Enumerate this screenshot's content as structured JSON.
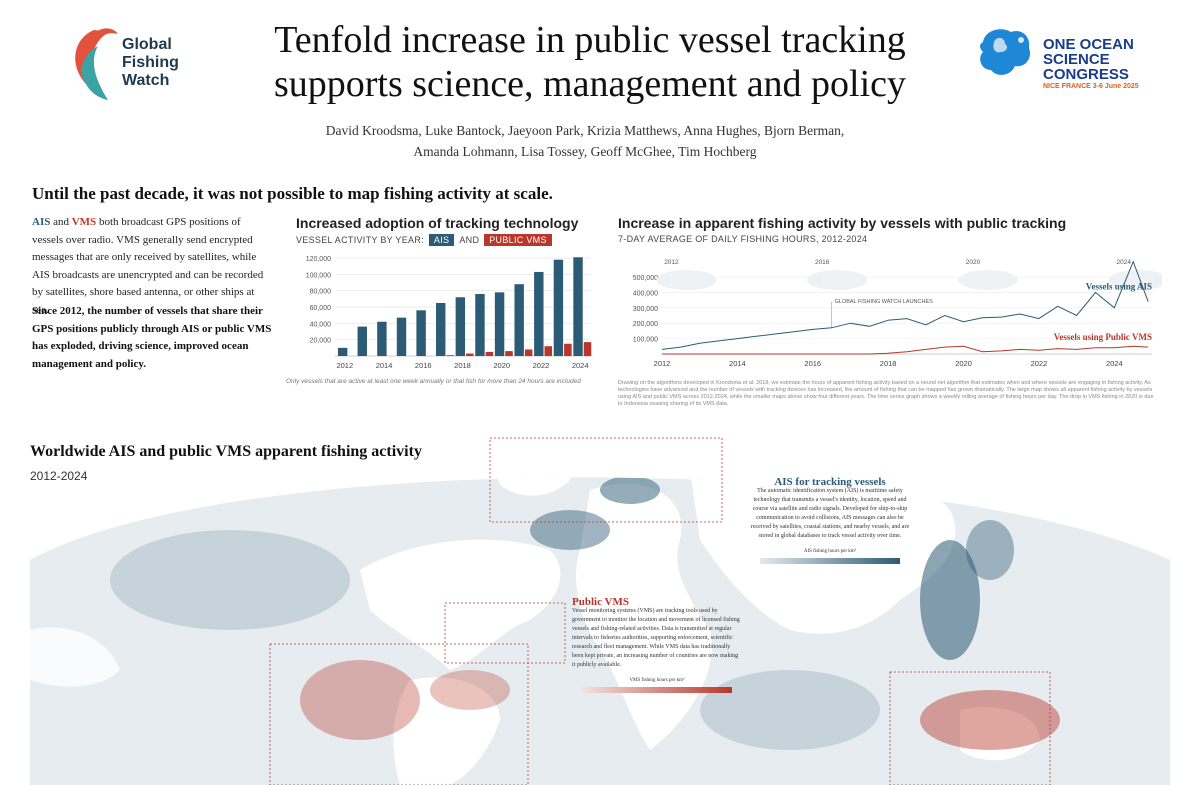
{
  "header": {
    "org_logo": [
      "Global",
      "Fishing",
      "Watch"
    ],
    "title_line1": "Tenfold increase in public vessel tracking",
    "title_line2": "supports science, management and policy",
    "authors_line1": "David Kroodsma, Luke Bantock, Jaeyoon Park, Krizia Matthews, Anna Hughes, Bjorn Berman,",
    "authors_line2": "Amanda Lohmann, Lisa Tossey, Geoff McGhee, Tim Hochberg",
    "conference_logo": [
      "ONE OCEAN",
      "SCIENCE",
      "CONGRESS"
    ],
    "conference_sub": "NICE FRANCE 3-6 June 2025"
  },
  "tagline": "Until the past decade, it was not possible to map fishing activity at scale.",
  "intro": {
    "ais": "AIS",
    "and": " and ",
    "vms": "VMS",
    "rest": " both broadcast GPS positions of vessels over radio. VMS generally send encrypted messages that are only received by satellites, while AIS broadcasts are unencrypted and can be recorded by satellites, shore based antenna, or other ships at sea.",
    "bold": "Since 2012, the number of vessels that share their GPS positions publicly through AIS or public VMS has exploded, driving science, improved ocean management and policy."
  },
  "colors": {
    "ais": "#2c5b75",
    "vms": "#b8372a"
  },
  "bar_chart_text": {
    "title": "Increased adoption of tracking technology",
    "sub_prefix": "VESSEL ACTIVITY BY YEAR:",
    "tag_ais": "AIS",
    "sub_and": "AND",
    "tag_vms": "PUBLIC VMS",
    "note": "Only vessels that are active at least one week annually or that fish for more than 24 hours are included"
  },
  "line_chart_text": {
    "title": "Increase in apparent fishing activity by vessels with public tracking",
    "sub": "7-DAY AVERAGE OF DAILY FISHING HOURS, 2012-2024",
    "note": "Drawing on the algorithms developed in Kroodsma et al. 2018, we estimate the hours of apparent fishing activity based on a neural net algorithm that estimates when and where vessels are engaging in fishing activity. As technologies have advanced and the number of vessels with tracking devices has increased, the amount of fishing that can be mapped has grown dramatically. The large map shows all apparent fishing activity by vessels using AIS and public VMS across 2012-2024, while the smaller maps above show four different years. The time series graph shows a weekly rolling average of fishing hours per day. The drop in VMS fishing in 2020 is due to Indonesia ceasing sharing of its VMS data."
  },
  "chart_data": [
    {
      "type": "bar",
      "categories": [
        "2012",
        "2013",
        "2014",
        "2015",
        "2016",
        "2017",
        "2018",
        "2019",
        "2020",
        "2021",
        "2022",
        "2023",
        "2024"
      ],
      "series": [
        {
          "name": "AIS",
          "values": [
            10000,
            36000,
            42000,
            47000,
            56000,
            65000,
            72000,
            76000,
            78000,
            88000,
            103000,
            118000,
            121000
          ]
        },
        {
          "name": "PUBLIC VMS",
          "values": [
            0,
            0,
            0,
            0,
            0,
            1000,
            3000,
            5000,
            6000,
            8000,
            12000,
            15000,
            17000
          ]
        }
      ],
      "x_tick_labels": [
        "2012",
        "2014",
        "2016",
        "2018",
        "2020",
        "2022",
        "2024"
      ],
      "y_tick_labels": [
        "120,000",
        "100,000",
        "80,000",
        "60,000",
        "40,000",
        "20,000"
      ],
      "ylim": [
        0,
        125000
      ]
    },
    {
      "type": "line",
      "x": [
        2012.0,
        2012.5,
        2013.0,
        2013.5,
        2014.0,
        2014.5,
        2015.0,
        2015.5,
        2016.0,
        2016.5,
        2017.0,
        2017.5,
        2018.0,
        2018.5,
        2019.0,
        2019.5,
        2020.0,
        2020.5,
        2021.0,
        2021.5,
        2022.0,
        2022.5,
        2023.0,
        2023.5,
        2024.0,
        2024.5,
        2024.9
      ],
      "series": [
        {
          "name": "Vessels using AIS",
          "values": [
            30000,
            45000,
            70000,
            85000,
            100000,
            115000,
            130000,
            145000,
            160000,
            170000,
            200000,
            180000,
            220000,
            230000,
            190000,
            250000,
            210000,
            235000,
            240000,
            260000,
            230000,
            310000,
            250000,
            400000,
            300000,
            600000,
            340000
          ]
        },
        {
          "name": "Vessels using Public VMS",
          "values": [
            0,
            0,
            0,
            0,
            0,
            0,
            0,
            0,
            0,
            0,
            0,
            0,
            5000,
            15000,
            30000,
            45000,
            50000,
            15000,
            20000,
            30000,
            25000,
            35000,
            30000,
            40000,
            40000,
            50000,
            45000
          ]
        }
      ],
      "x_tick_labels": [
        "2012",
        "2014",
        "2016",
        "2018",
        "2020",
        "2022",
        "2024"
      ],
      "y_tick_labels": [
        "500,000",
        "400,000",
        "300,000",
        "200,000",
        "100,000"
      ],
      "ylim": [
        0,
        650000
      ],
      "annotations": {
        "launch": "GLOBAL FISHING WATCH LAUNCHES",
        "ais_label": "Vessels using AIS",
        "vms_label": "Vessels using Public VMS",
        "map_years": [
          "2012",
          "2016",
          "2020",
          "2024"
        ]
      }
    }
  ],
  "map": {
    "title": "Worldwide AIS and public VMS apparent fishing activity",
    "years": "2012-2024",
    "ais_callout_title": "AIS for tracking vessels",
    "ais_callout_body": "The automatic identification system (AIS) is maritime safety technology that transmits a vessel's identity, location, speed and course via satellite and radio signals. Developed for ship-to-ship communication to avoid collisions, AIS messages can also be received by satellites, coastal stations, and nearby vessels, and are stored in global databases to track vessel activity over time.",
    "ais_scale_label": "AIS fishing hours per km²",
    "vms_callout_title": "Public VMS",
    "vms_callout_body": "Vessel monitoring systems (VMS) are tracking tools used by government to monitor the location and movement of licensed fishing vessels and fishing-related activities. Data is transmitted at regular intervals to fisheries authorities, supporting enforcement, scientific research and fleet management. While VMS data has traditionally been kept private, an increasing number of countries are now making it publicly available.",
    "vms_scale_label": "VMS fishing hours per km²"
  }
}
